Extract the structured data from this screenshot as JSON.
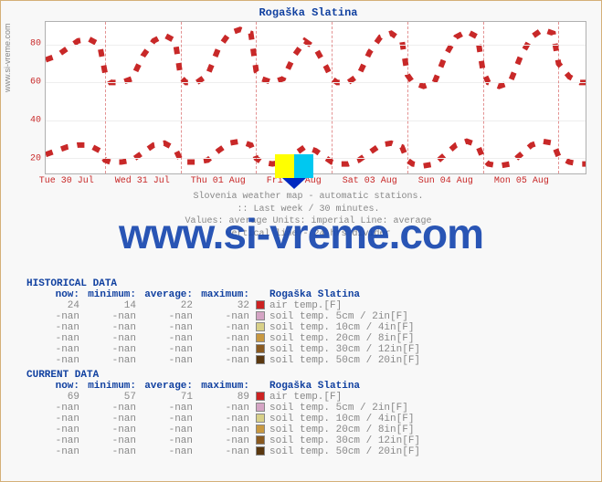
{
  "title": "Rogaška Slatina",
  "watermark_side": "www.si-vreme.com",
  "watermark_big": "www.si-vreme.com",
  "caption_lines": [
    "Slovenia weather map - automatic stations.",
    ":: Last week / 30 minutes.",
    "Values: average  Units: imperial  Line: average",
    "vertical line - 24 hrs  divider"
  ],
  "chart": {
    "type": "line",
    "ylim": [
      12,
      92
    ],
    "yticks": [
      20,
      40,
      60,
      80
    ],
    "x_labels": [
      "Tue 30 Jul",
      "Wed 31 Jul",
      "Thu 01 Aug",
      "Fri 02 Aug",
      "Sat 03 Aug",
      "Sun 04 Aug",
      "Mon 05 Aug"
    ],
    "x_positions": [
      0.04,
      0.18,
      0.32,
      0.46,
      0.6,
      0.74,
      0.88
    ],
    "day_dividers": [
      0.11,
      0.25,
      0.39,
      0.53,
      0.67,
      0.81,
      0.95
    ],
    "grid_color": "#eeeeee",
    "line_color": "#c82828",
    "background": "#ffffff",
    "series": [
      {
        "name": "upper",
        "points": [
          [
            0.0,
            72
          ],
          [
            0.02,
            74
          ],
          [
            0.04,
            78
          ],
          [
            0.06,
            82
          ],
          [
            0.08,
            83
          ],
          [
            0.1,
            80
          ],
          [
            0.11,
            65
          ],
          [
            0.12,
            60
          ],
          [
            0.14,
            60
          ],
          [
            0.16,
            62
          ],
          [
            0.18,
            74
          ],
          [
            0.2,
            82
          ],
          [
            0.22,
            85
          ],
          [
            0.24,
            82
          ],
          [
            0.25,
            63
          ],
          [
            0.26,
            60
          ],
          [
            0.28,
            60
          ],
          [
            0.3,
            64
          ],
          [
            0.32,
            78
          ],
          [
            0.34,
            86
          ],
          [
            0.36,
            88
          ],
          [
            0.38,
            86
          ],
          [
            0.39,
            66
          ],
          [
            0.4,
            62
          ],
          [
            0.42,
            60
          ],
          [
            0.44,
            62
          ],
          [
            0.46,
            74
          ],
          [
            0.48,
            82
          ],
          [
            0.5,
            78
          ],
          [
            0.52,
            68
          ],
          [
            0.53,
            62
          ],
          [
            0.54,
            60
          ],
          [
            0.56,
            60
          ],
          [
            0.58,
            64
          ],
          [
            0.6,
            76
          ],
          [
            0.62,
            84
          ],
          [
            0.64,
            86
          ],
          [
            0.66,
            82
          ],
          [
            0.67,
            64
          ],
          [
            0.68,
            60
          ],
          [
            0.7,
            58
          ],
          [
            0.72,
            60
          ],
          [
            0.74,
            74
          ],
          [
            0.76,
            84
          ],
          [
            0.78,
            87
          ],
          [
            0.8,
            84
          ],
          [
            0.81,
            66
          ],
          [
            0.82,
            60
          ],
          [
            0.84,
            58
          ],
          [
            0.86,
            60
          ],
          [
            0.88,
            74
          ],
          [
            0.9,
            84
          ],
          [
            0.92,
            88
          ],
          [
            0.94,
            86
          ],
          [
            0.95,
            70
          ],
          [
            0.97,
            63
          ],
          [
            0.99,
            60
          ],
          [
            1.0,
            60
          ]
        ]
      },
      {
        "name": "lower",
        "points": [
          [
            0.0,
            22
          ],
          [
            0.02,
            24
          ],
          [
            0.04,
            26
          ],
          [
            0.06,
            27
          ],
          [
            0.08,
            27
          ],
          [
            0.1,
            24
          ],
          [
            0.11,
            19
          ],
          [
            0.12,
            18
          ],
          [
            0.14,
            18
          ],
          [
            0.16,
            19
          ],
          [
            0.18,
            23
          ],
          [
            0.2,
            27
          ],
          [
            0.22,
            28
          ],
          [
            0.24,
            25
          ],
          [
            0.25,
            19
          ],
          [
            0.26,
            18
          ],
          [
            0.28,
            18
          ],
          [
            0.3,
            19
          ],
          [
            0.32,
            24
          ],
          [
            0.34,
            28
          ],
          [
            0.36,
            29
          ],
          [
            0.38,
            27
          ],
          [
            0.39,
            20
          ],
          [
            0.4,
            18
          ],
          [
            0.42,
            17
          ],
          [
            0.44,
            18
          ],
          [
            0.46,
            22
          ],
          [
            0.48,
            26
          ],
          [
            0.5,
            24
          ],
          [
            0.52,
            20
          ],
          [
            0.53,
            18
          ],
          [
            0.54,
            17
          ],
          [
            0.56,
            17
          ],
          [
            0.58,
            19
          ],
          [
            0.6,
            23
          ],
          [
            0.62,
            27
          ],
          [
            0.64,
            28
          ],
          [
            0.66,
            26
          ],
          [
            0.67,
            19
          ],
          [
            0.68,
            17
          ],
          [
            0.7,
            16
          ],
          [
            0.72,
            17
          ],
          [
            0.74,
            22
          ],
          [
            0.76,
            27
          ],
          [
            0.78,
            29
          ],
          [
            0.8,
            27
          ],
          [
            0.81,
            20
          ],
          [
            0.82,
            17
          ],
          [
            0.84,
            16
          ],
          [
            0.86,
            17
          ],
          [
            0.88,
            22
          ],
          [
            0.9,
            27
          ],
          [
            0.92,
            29
          ],
          [
            0.94,
            28
          ],
          [
            0.95,
            21
          ],
          [
            0.97,
            18
          ],
          [
            0.99,
            17
          ],
          [
            1.0,
            17
          ]
        ]
      }
    ]
  },
  "table_columns": [
    "now:",
    "minimum:",
    "average:",
    "maximum:"
  ],
  "location_col": "Rogaška Slatina",
  "historical": {
    "header": "HISTORICAL DATA",
    "rows": [
      {
        "now": "24",
        "min": "14",
        "avg": "22",
        "max": "32",
        "color": "#cc2222",
        "label": "air temp.[F]"
      },
      {
        "now": "-nan",
        "min": "-nan",
        "avg": "-nan",
        "max": "-nan",
        "color": "#d4a4c4",
        "label": "soil temp. 5cm / 2in[F]"
      },
      {
        "now": "-nan",
        "min": "-nan",
        "avg": "-nan",
        "max": "-nan",
        "color": "#d8d088",
        "label": "soil temp. 10cm / 4in[F]"
      },
      {
        "now": "-nan",
        "min": "-nan",
        "avg": "-nan",
        "max": "-nan",
        "color": "#c89840",
        "label": "soil temp. 20cm / 8in[F]"
      },
      {
        "now": "-nan",
        "min": "-nan",
        "avg": "-nan",
        "max": "-nan",
        "color": "#8a5a20",
        "label": "soil temp. 30cm / 12in[F]"
      },
      {
        "now": "-nan",
        "min": "-nan",
        "avg": "-nan",
        "max": "-nan",
        "color": "#5a3810",
        "label": "soil temp. 50cm / 20in[F]"
      }
    ]
  },
  "current": {
    "header": "CURRENT DATA",
    "rows": [
      {
        "now": "69",
        "min": "57",
        "avg": "71",
        "max": "89",
        "color": "#cc2222",
        "label": "air temp.[F]"
      },
      {
        "now": "-nan",
        "min": "-nan",
        "avg": "-nan",
        "max": "-nan",
        "color": "#d4a4c4",
        "label": "soil temp. 5cm / 2in[F]"
      },
      {
        "now": "-nan",
        "min": "-nan",
        "avg": "-nan",
        "max": "-nan",
        "color": "#d8d088",
        "label": "soil temp. 10cm / 4in[F]"
      },
      {
        "now": "-nan",
        "min": "-nan",
        "avg": "-nan",
        "max": "-nan",
        "color": "#c89840",
        "label": "soil temp. 20cm / 8in[F]"
      },
      {
        "now": "-nan",
        "min": "-nan",
        "avg": "-nan",
        "max": "-nan",
        "color": "#8a5a20",
        "label": "soil temp. 30cm / 12in[F]"
      },
      {
        "now": "-nan",
        "min": "-nan",
        "avg": "-nan",
        "max": "-nan",
        "color": "#5a3810",
        "label": "soil temp. 50cm / 20in[F]"
      }
    ]
  },
  "wm_icon_colors": [
    "#ffff00",
    "#00c8f0",
    "#0028c0"
  ]
}
